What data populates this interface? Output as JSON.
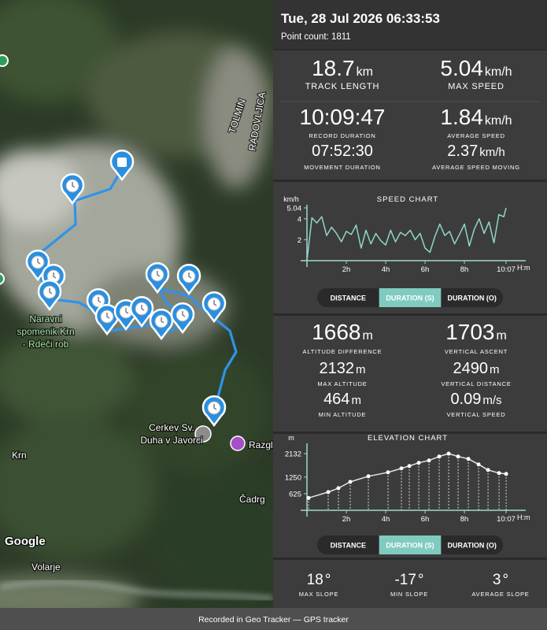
{
  "map": {
    "labels": {
      "tolmin": "TOLMIN",
      "radovljica": "RADOVLJICA",
      "krn_landmark": [
        "Naravni",
        "spomenik Krn",
        "- Rdeči rob"
      ],
      "church": [
        "Cerkev Sv.",
        "Duha v Javorci"
      ],
      "razgl": "Razgl",
      "krn": "Krn",
      "cadrg": "Čadrg",
      "volarje": "Volarje"
    },
    "attribution": "Google"
  },
  "header": {
    "datetime": "Tue, 28 Jul 2026 06:33:53",
    "point_count": {
      "label": "Point count:",
      "value": 1811
    }
  },
  "summary": [
    {
      "value": 18.7,
      "unit": "km",
      "label": "TRACK LENGTH"
    },
    {
      "value": 5.04,
      "unit": "km/h",
      "label": "MAX SPEED"
    },
    {
      "value": "10:09:47",
      "label": "RECORD DURATION"
    },
    {
      "value": 1.84,
      "unit": "km/h",
      "label": "AVERAGE SPEED"
    },
    {
      "value": "07:52:30",
      "label": "MOVEMENT DURATION"
    },
    {
      "value": 2.37,
      "unit": "km/h",
      "label": "AVERAGE SPEED MOVING"
    }
  ],
  "speed_chart": {
    "type": "line",
    "title": "SPEED CHART",
    "y_unit": "km/h",
    "x_unit": "H:m",
    "color": "#8fd6c9",
    "x": [
      0,
      0.25,
      0.5,
      0.75,
      1,
      1.25,
      1.5,
      1.75,
      2,
      2.25,
      2.5,
      2.75,
      3,
      3.25,
      3.5,
      3.75,
      4,
      4.25,
      4.5,
      4.75,
      5,
      5.25,
      5.5,
      5.75,
      6,
      6.25,
      6.5,
      6.75,
      7,
      7.25,
      7.5,
      7.75,
      8,
      8.25,
      8.5,
      8.75,
      9,
      9.25,
      9.5,
      9.75,
      10,
      10.117
    ],
    "values": [
      0,
      4.1,
      3.6,
      4.2,
      2.4,
      3.2,
      2.6,
      1.8,
      2.8,
      2.5,
      3.4,
      1.2,
      2.9,
      1.6,
      2.6,
      1.9,
      1.5,
      2.9,
      1.8,
      2.7,
      2.4,
      2.9,
      2.0,
      2.6,
      1.2,
      0.8,
      2.3,
      3.5,
      2.4,
      2.8,
      1.6,
      2.5,
      3.5,
      1.4,
      3.0,
      4.0,
      2.6,
      3.7,
      1.7,
      4.4,
      4.2,
      5.04
    ],
    "xlim": [
      0,
      10.117
    ],
    "ylim": [
      0,
      5.04
    ],
    "xticks": [
      {
        "value": 2,
        "label": "2h"
      },
      {
        "value": 4,
        "label": "4h"
      },
      {
        "value": 6,
        "label": "6h"
      },
      {
        "value": 8,
        "label": "8h"
      },
      {
        "value": 10.117,
        "label": "10:07"
      }
    ],
    "yticks": [
      2,
      4,
      5.04
    ],
    "modes": [
      "DISTANCE",
      "DURATION (S)",
      "DURATION (O)"
    ],
    "selected_mode": 1
  },
  "altitude": [
    {
      "value": 1668,
      "unit": "m",
      "label": "ALTITUDE DIFFERENCE"
    },
    {
      "value": 1703,
      "unit": "m",
      "label": "VERTICAL ASCENT"
    },
    {
      "value": 2132,
      "unit": "m",
      "label": "MAX ALTITUDE"
    },
    {
      "value": 2490,
      "unit": "m",
      "label": "VERTICAL DISTANCE"
    },
    {
      "value": 464,
      "unit": "m",
      "label": "MIN ALTITUDE"
    },
    {
      "value": 0.09,
      "unit": "m/s",
      "label": "VERTICAL SPEED"
    }
  ],
  "elevation_chart": {
    "type": "line",
    "title": "ELEVATION CHART",
    "y_unit": "m",
    "x_unit": "H:m",
    "color": "#e6e6e6",
    "markers": true,
    "x": [
      0.08,
      1.08,
      1.6,
      2.2,
      3.12,
      4.12,
      4.8,
      5.2,
      5.68,
      6.2,
      6.72,
      7.2,
      7.68,
      8.2,
      8.72,
      9.2,
      9.76,
      10.12
    ],
    "values": [
      464,
      685,
      833,
      1071,
      1280,
      1429,
      1577,
      1667,
      1786,
      1875,
      2024,
      2132,
      2024,
      1935,
      1726,
      1518,
      1399,
      1369
    ],
    "xlim": [
      0,
      10.117
    ],
    "ylim": [
      0,
      2400
    ],
    "xticks": [
      {
        "value": 2,
        "label": "2h"
      },
      {
        "value": 4,
        "label": "4h"
      },
      {
        "value": 6,
        "label": "6h"
      },
      {
        "value": 8,
        "label": "8h"
      },
      {
        "value": 10.117,
        "label": "10:07"
      }
    ],
    "yticks": [
      625,
      1250,
      2132
    ],
    "modes": [
      "DISTANCE",
      "DURATION (S)",
      "DURATION (O)"
    ],
    "selected_mode": 1
  },
  "slopes": [
    {
      "value": 18,
      "unit": "°",
      "label": "MAX SLOPE"
    },
    {
      "value": -17,
      "unit": "°",
      "label": "MIN SLOPE"
    },
    {
      "value": 3,
      "unit": "°",
      "label": "AVERAGE SLOPE"
    }
  ],
  "footer": "Recorded in Geo Tracker — GPS tracker"
}
